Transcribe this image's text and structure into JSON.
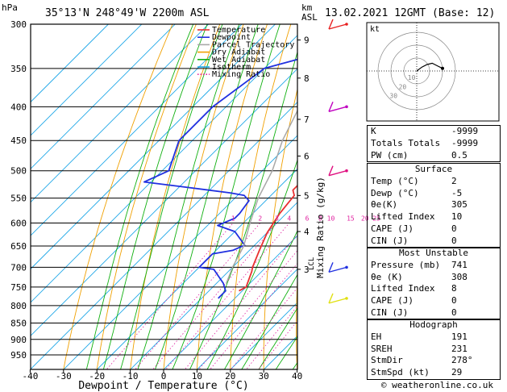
{
  "header": {
    "hpa": "hPa",
    "location": "35°13'N  248°49'W  2200m  ASL",
    "km": "km",
    "asl": "ASL",
    "date": "13.02.2021  12GMT  (Base: 12)"
  },
  "skewt": {
    "x_title": "Dewpoint / Temperature (°C)",
    "mixing_axis_label": "Mixing Ratio (g/kg)",
    "pressure_ticks": [
      300,
      350,
      400,
      450,
      500,
      550,
      600,
      650,
      700,
      750,
      800,
      850,
      900,
      950
    ],
    "temp_ticks": [
      -40,
      -30,
      -20,
      -10,
      0,
      10,
      20,
      30,
      40
    ],
    "km_ticks": [
      {
        "label": "9",
        "p": 317
      },
      {
        "label": "8",
        "p": 362
      },
      {
        "label": "7",
        "p": 418
      },
      {
        "label": "6",
        "p": 475
      },
      {
        "label": "5",
        "p": 545
      },
      {
        "label": "4",
        "p": 618
      },
      {
        "label": "3",
        "p": 705
      }
    ],
    "lcl_label": "LCL",
    "mixing_ratio_labels": [
      "1",
      "2",
      "3",
      "4",
      "6",
      "8",
      "10",
      "15",
      "20",
      "25"
    ],
    "mixing_ratios": [
      1,
      2,
      3,
      4,
      6,
      8,
      10,
      15,
      20,
      25
    ],
    "legend": [
      {
        "label": "Temperature",
        "color": "#e83030"
      },
      {
        "label": "Dewpoint",
        "color": "#2030e0"
      },
      {
        "label": "Parcel Trajectory",
        "color": "#a8a8a8"
      },
      {
        "label": "Dry Adiabat",
        "color": "#f0a000"
      },
      {
        "label": "Wet Adiabat",
        "color": "#10b010"
      },
      {
        "label": "Isotherm",
        "color": "#20a8e8"
      },
      {
        "label": "Mixing Ratio",
        "color": "#e020a0"
      }
    ]
  },
  "chart_data": {
    "type": "line",
    "x_axis": {
      "label": "Dewpoint / Temperature (°C)",
      "range": [
        -40,
        40
      ]
    },
    "y_axis": {
      "label": "hPa",
      "range": [
        300,
        1000
      ],
      "scale": "log",
      "inverted": true
    },
    "series": [
      {
        "name": "Temperature",
        "color": "#e83030",
        "points": [
          [
            -34,
            300
          ],
          [
            -31,
            320
          ],
          [
            -28,
            350
          ],
          [
            -25,
            380
          ],
          [
            -22,
            420
          ],
          [
            -19,
            460
          ],
          [
            -18,
            480
          ],
          [
            -15,
            520
          ],
          [
            -15,
            535
          ],
          [
            -13,
            545
          ],
          [
            -12,
            580
          ],
          [
            -10,
            620
          ],
          [
            -7,
            660
          ],
          [
            -4,
            700
          ],
          [
            -3,
            710
          ],
          [
            0,
            750
          ],
          [
            -1,
            760
          ]
        ]
      },
      {
        "name": "Dewpoint",
        "color": "#2030e0",
        "points": [
          [
            -48,
            300
          ],
          [
            -50,
            335
          ],
          [
            -60,
            350
          ],
          [
            -64,
            400
          ],
          [
            -64,
            450
          ],
          [
            -58,
            500
          ],
          [
            -62,
            520
          ],
          [
            -50,
            528
          ],
          [
            -33,
            540
          ],
          [
            -28,
            545
          ],
          [
            -25,
            555
          ],
          [
            -24,
            580
          ],
          [
            -24,
            590
          ],
          [
            -27,
            605
          ],
          [
            -20,
            618
          ],
          [
            -13,
            648
          ],
          [
            -15,
            660
          ],
          [
            -20,
            668
          ],
          [
            -20,
            700
          ],
          [
            -15,
            705
          ],
          [
            -8,
            740
          ],
          [
            -5,
            760
          ],
          [
            -5,
            780
          ]
        ]
      },
      {
        "name": "Parcel Trajectory",
        "color": "#a8a8a8",
        "points": [
          [
            -49,
            300
          ],
          [
            -43,
            350
          ],
          [
            -38,
            400
          ],
          [
            -33,
            450
          ],
          [
            -27,
            500
          ],
          [
            -23,
            550
          ],
          [
            -18,
            600
          ],
          [
            -13,
            650
          ],
          [
            -10,
            700
          ],
          [
            -7,
            741
          ]
        ]
      }
    ]
  },
  "winds": [
    {
      "p": 300,
      "color": "#e82020"
    },
    {
      "p": 400,
      "color": "#c000c0"
    },
    {
      "p": 500,
      "color": "#e01080"
    },
    {
      "p": 700,
      "color": "#2030e0"
    },
    {
      "p": 780,
      "color": "#e0e010"
    }
  ],
  "hodograph": {
    "kt_label": "kt",
    "ring_labels": [
      "10",
      "20",
      "30"
    ],
    "trace": [
      [
        0,
        0
      ],
      [
        4,
        3
      ],
      [
        8,
        5
      ],
      [
        12,
        6
      ],
      [
        16,
        4
      ],
      [
        20,
        2
      ]
    ]
  },
  "indices": {
    "top": [
      {
        "label": "K",
        "value": "-9999"
      },
      {
        "label": "Totals Totals",
        "value": "-9999"
      },
      {
        "label": "PW (cm)",
        "value": "0.5"
      }
    ],
    "surface_title": "Surface",
    "surface": [
      {
        "label": "Temp (°C)",
        "value": "2"
      },
      {
        "label": "Dewp (°C)",
        "value": "-5"
      },
      {
        "label": "θe(K)",
        "value": "305"
      },
      {
        "label": "Lifted Index",
        "value": "10"
      },
      {
        "label": "CAPE (J)",
        "value": "0"
      },
      {
        "label": "CIN (J)",
        "value": "0"
      }
    ],
    "unstable_title": "Most Unstable",
    "unstable": [
      {
        "label": "Pressure (mb)",
        "value": "741"
      },
      {
        "label": "θe (K)",
        "value": "308"
      },
      {
        "label": "Lifted Index",
        "value": "8"
      },
      {
        "label": "CAPE (J)",
        "value": "0"
      },
      {
        "label": "CIN (J)",
        "value": "0"
      }
    ],
    "hodograph_title": "Hodograph",
    "hodo": [
      {
        "label": "EH",
        "value": "191"
      },
      {
        "label": "SREH",
        "value": "231"
      },
      {
        "label": "StmDir",
        "value": "278°"
      },
      {
        "label": "StmSpd (kt)",
        "value": "29"
      }
    ]
  },
  "footer": {
    "copyright": "© weatheronline.co.uk"
  }
}
